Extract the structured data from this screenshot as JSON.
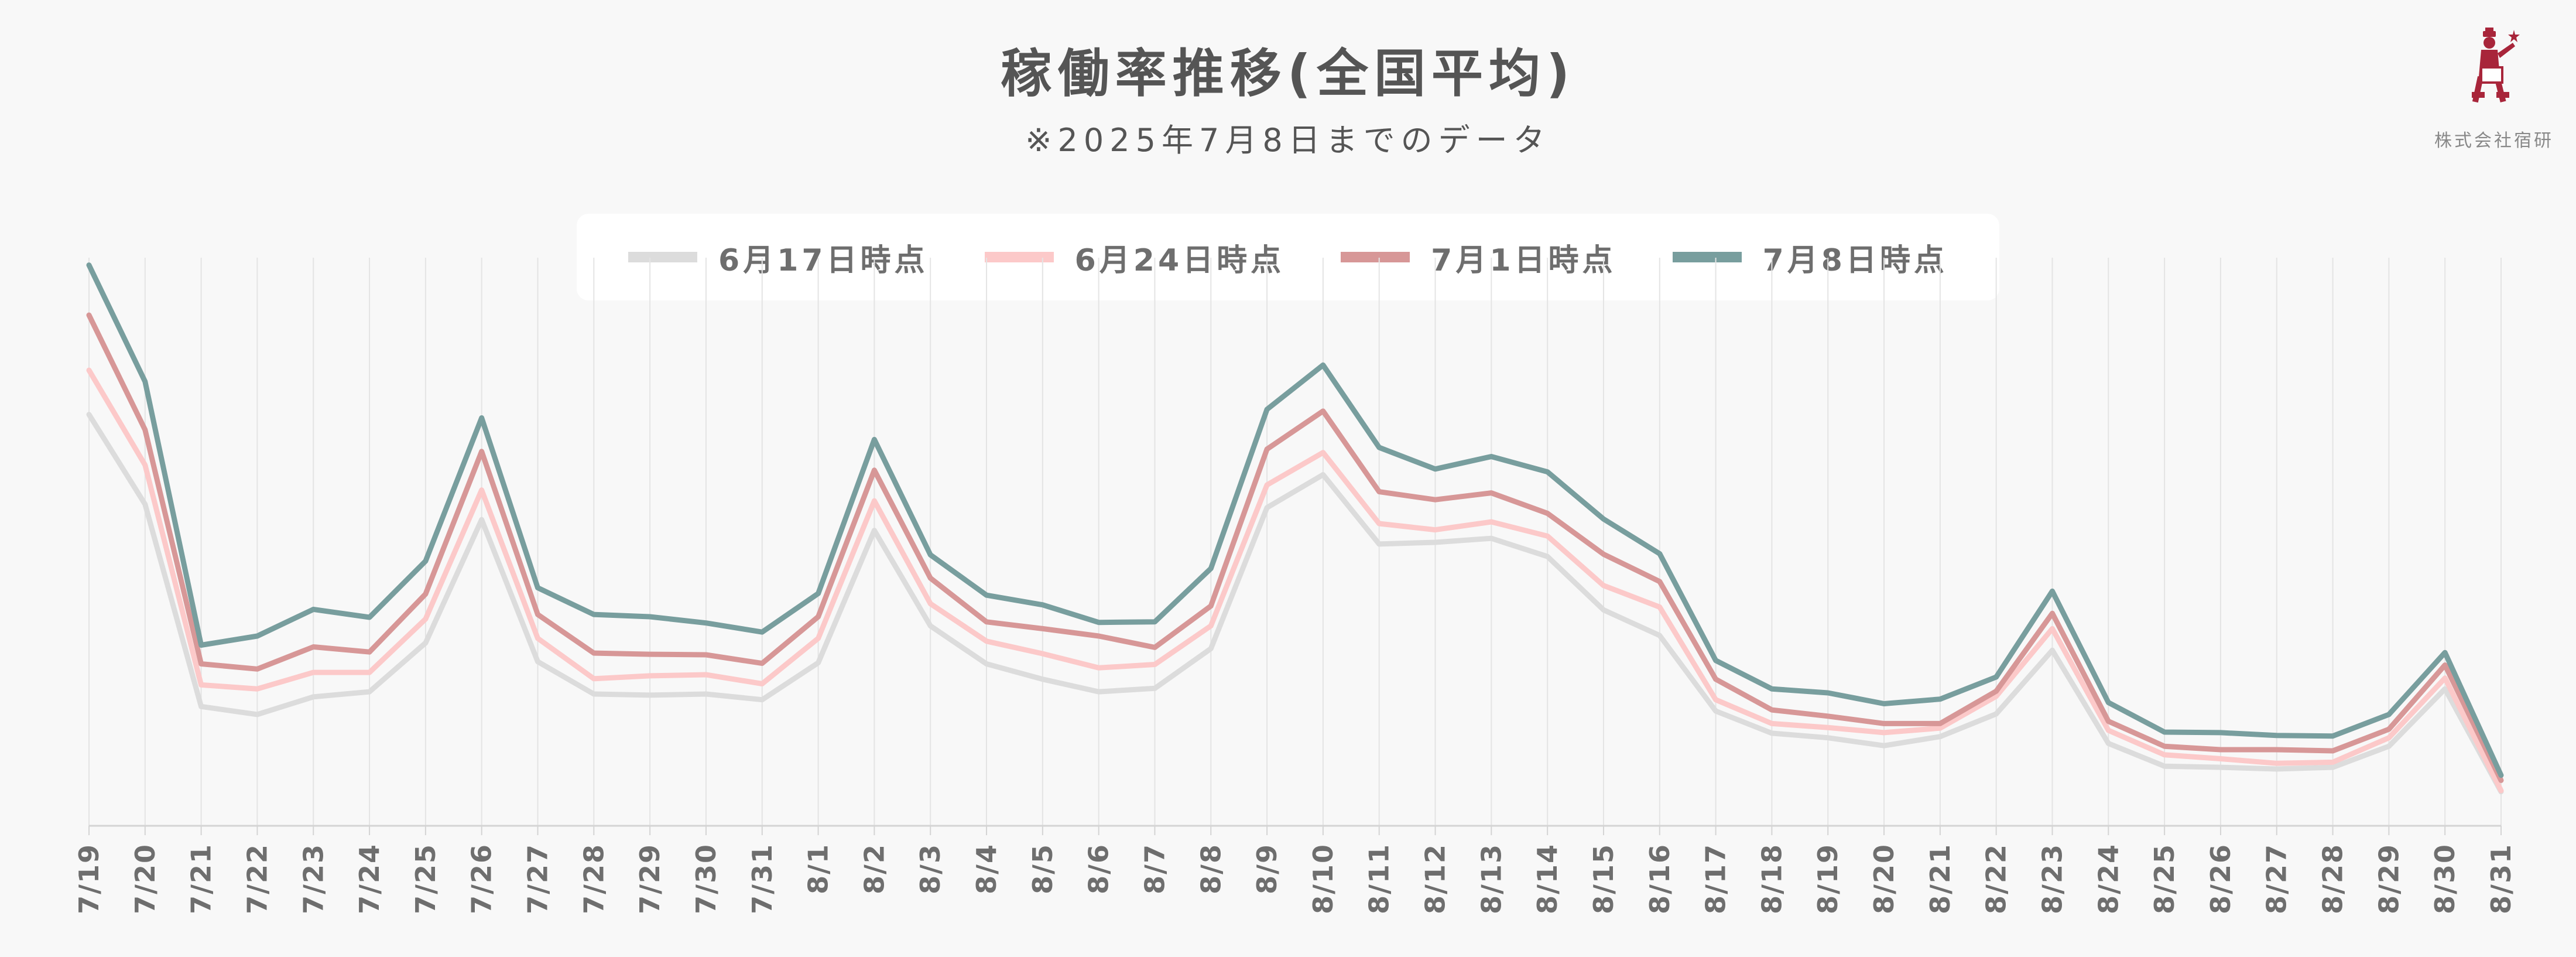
{
  "title": "稼働率推移(全国平均)",
  "subtitle": "※2025年7月8日までのデータ",
  "logo": {
    "text": "株式会社宿研",
    "icon": "bellhop-icon"
  },
  "chart_data": {
    "type": "line",
    "title": "稼働率推移(全国平均)",
    "subtitle": "※2025年7月8日までのデータ",
    "legend_placement": "top-center",
    "grid": "vertical",
    "ylim": [
      0,
      100
    ],
    "y_axis_labels": "none",
    "categories": [
      "7/19",
      "7/20",
      "7/21",
      "7/22",
      "7/23",
      "7/24",
      "7/25",
      "7/26",
      "7/27",
      "7/28",
      "7/29",
      "7/30",
      "7/31",
      "8/1",
      "8/2",
      "8/3",
      "8/4",
      "8/5",
      "8/6",
      "8/7",
      "8/8",
      "8/9",
      "8/10",
      "8/11",
      "8/12",
      "8/13",
      "8/14",
      "8/15",
      "8/16",
      "8/17",
      "8/18",
      "8/19",
      "8/20",
      "8/21",
      "8/22",
      "8/23",
      "8/24",
      "8/25",
      "8/26",
      "8/27",
      "8/28",
      "8/29",
      "8/30",
      "8/31"
    ],
    "series": [
      {
        "name": "6月17日時点",
        "color": "#dcdcdc",
        "values": [
          72.4,
          56.6,
          21.0,
          19.6,
          22.7,
          23.6,
          32.2,
          53.9,
          28.9,
          23.2,
          23.0,
          23.2,
          22.2,
          28.7,
          52.0,
          35.2,
          28.5,
          25.8,
          23.6,
          24.2,
          31.2,
          56.0,
          61.8,
          49.6,
          49.9,
          50.6,
          47.4,
          38.0,
          33.5,
          20.2,
          16.3,
          15.5,
          14.1,
          15.7,
          19.7,
          30.9,
          14.5,
          10.5,
          10.3,
          10.0,
          10.3,
          14.0,
          24.1,
          6.0
        ]
      },
      {
        "name": "6月24日時点",
        "color": "#fcc9c9",
        "values": [
          80.2,
          63.5,
          24.8,
          24.1,
          27.0,
          27.0,
          36.4,
          59.1,
          33.0,
          25.9,
          26.4,
          26.6,
          25.0,
          33.0,
          57.2,
          39.1,
          32.5,
          30.3,
          27.8,
          28.4,
          35.2,
          60.0,
          65.7,
          53.2,
          52.1,
          53.5,
          51.0,
          42.3,
          38.5,
          22.2,
          18.0,
          17.3,
          16.4,
          17.2,
          22.8,
          34.7,
          16.8,
          12.5,
          11.8,
          11.0,
          11.2,
          15.5,
          26.0,
          6.2
        ]
      },
      {
        "name": "7月1日時点",
        "color": "#d79797",
        "values": [
          89.9,
          69.7,
          28.5,
          27.6,
          31.5,
          30.6,
          40.8,
          65.9,
          37.2,
          30.4,
          30.2,
          30.1,
          28.6,
          36.8,
          62.6,
          43.6,
          35.9,
          34.7,
          33.4,
          31.4,
          38.7,
          66.3,
          73.0,
          58.8,
          57.4,
          58.6,
          55.0,
          47.8,
          43.0,
          25.8,
          20.4,
          19.3,
          18.0,
          18.0,
          23.7,
          37.4,
          18.4,
          14.0,
          13.4,
          13.4,
          13.2,
          17.0,
          28.3,
          8.0
        ]
      },
      {
        "name": "7月8日時点",
        "color": "#789e9e",
        "values": [
          98.7,
          78.2,
          31.8,
          33.4,
          38.1,
          36.7,
          46.6,
          71.8,
          41.9,
          37.2,
          36.8,
          35.7,
          34.1,
          40.9,
          68.0,
          47.7,
          40.6,
          38.9,
          35.8,
          35.9,
          45.3,
          73.3,
          81.1,
          66.6,
          62.8,
          65.0,
          62.3,
          54.0,
          47.9,
          29.1,
          24.1,
          23.4,
          21.5,
          22.3,
          26.2,
          41.3,
          21.7,
          16.5,
          16.4,
          15.9,
          15.8,
          19.6,
          30.5,
          8.9
        ]
      }
    ]
  }
}
